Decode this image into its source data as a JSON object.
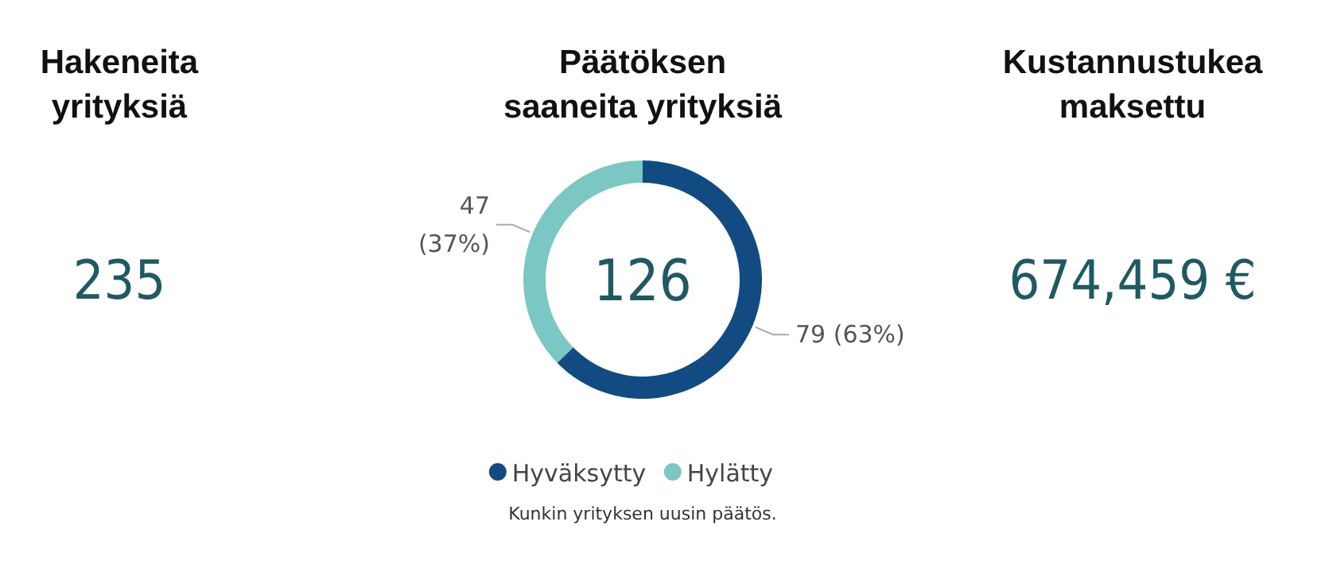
{
  "chart_data": [
    {
      "type": "other",
      "title": "Hakeneita\nyrityksiä",
      "annotations": [
        "235"
      ]
    },
    {
      "type": "donut",
      "title": "Päätöksen\nsaaneita yrityksiä",
      "categories": [
        "Hyväksytty",
        "Hylätty"
      ],
      "values": [
        79,
        47
      ],
      "colors": [
        "#114b82",
        "#7ac7c3"
      ],
      "value_labels": [
        "79 (63%)",
        "47\n(37%)"
      ],
      "legend": "bottom",
      "annotations": [
        "126",
        "Kunkin yrityksen uusin päätös."
      ]
    },
    {
      "type": "other",
      "title": "Kustannustukea\nmaksettu",
      "annotations": [
        "674,459 €"
      ]
    }
  ]
}
